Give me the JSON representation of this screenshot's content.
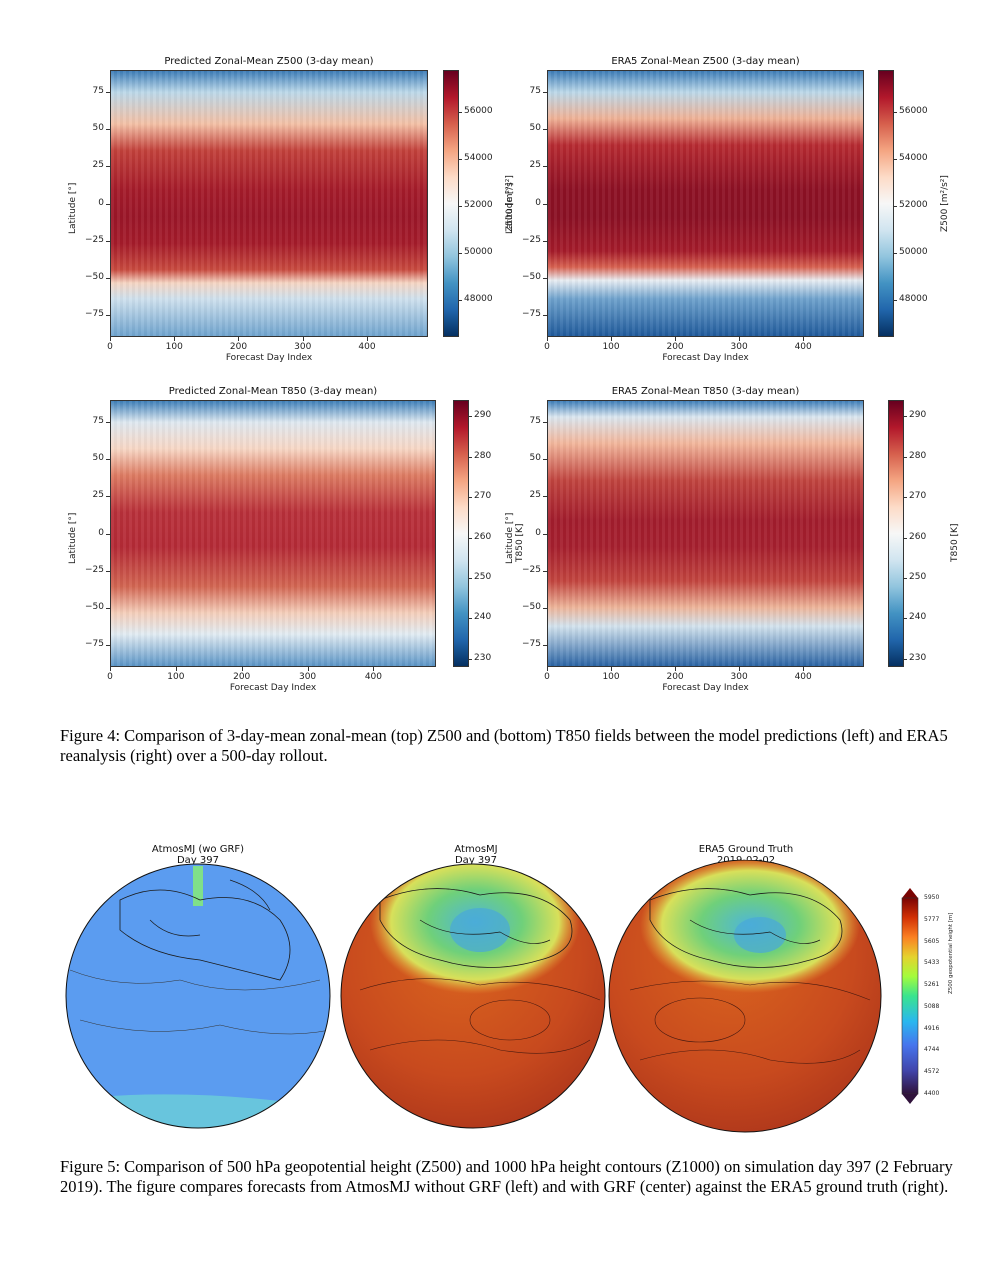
{
  "colors": {
    "rdbu": [
      "#053061",
      "#2166ac",
      "#4393c3",
      "#92c5de",
      "#d1e5f0",
      "#f7f7f7",
      "#fddbc7",
      "#f4a582",
      "#d6604d",
      "#b2182b",
      "#67001f"
    ],
    "globe_blue": "#5b9cf0",
    "globe_red": "#c94a23"
  },
  "chart_data": [
    {
      "type": "heatmap",
      "title": "Predicted Zonal-Mean Z500 (3-day mean)",
      "xlabel": "Forecast Day Index",
      "ylabel": "Latitude [°]",
      "xticks": [
        "0",
        "100",
        "200",
        "300",
        "400"
      ],
      "yticks": [
        "75",
        "50",
        "25",
        "0",
        "−25",
        "−50",
        "−75"
      ],
      "xlim": [
        0,
        495
      ],
      "ylim": [
        -90,
        90
      ],
      "colorbar_label": "Z500 [m²/s²]",
      "colorbar_ticks": [
        "56000",
        "54000",
        "52000",
        "50000",
        "48000"
      ],
      "colorbar_range": [
        46400,
        57800
      ]
    },
    {
      "type": "heatmap",
      "title": "ERA5 Zonal-Mean Z500 (3-day mean)",
      "xlabel": "Forecast Day Index",
      "ylabel": "Latitude [°]",
      "xticks": [
        "0",
        "100",
        "200",
        "300",
        "400"
      ],
      "yticks": [
        "75",
        "50",
        "25",
        "0",
        "−25",
        "−50",
        "−75"
      ],
      "xlim": [
        0,
        495
      ],
      "ylim": [
        -90,
        90
      ],
      "colorbar_label": "Z500 [m²/s²]",
      "colorbar_ticks": [
        "56000",
        "54000",
        "52000",
        "50000",
        "48000"
      ],
      "colorbar_range": [
        46400,
        57800
      ]
    },
    {
      "type": "heatmap",
      "title": "Predicted Zonal-Mean T850 (3-day mean)",
      "xlabel": "Forecast Day Index",
      "ylabel": "Latitude [°]",
      "xticks": [
        "0",
        "100",
        "200",
        "300",
        "400"
      ],
      "yticks": [
        "75",
        "50",
        "25",
        "0",
        "−25",
        "−50",
        "−75"
      ],
      "xlim": [
        0,
        495
      ],
      "ylim": [
        -90,
        90
      ],
      "colorbar_label": "T850 [K]",
      "colorbar_ticks": [
        "290",
        "280",
        "270",
        "260",
        "250",
        "240",
        "230"
      ],
      "colorbar_range": [
        228,
        294
      ]
    },
    {
      "type": "heatmap",
      "title": "ERA5 Zonal-Mean T850 (3-day mean)",
      "xlabel": "Forecast Day Index",
      "ylabel": "Latitude [°]",
      "xticks": [
        "0",
        "100",
        "200",
        "300",
        "400"
      ],
      "yticks": [
        "75",
        "50",
        "25",
        "0",
        "−25",
        "−50",
        "−75"
      ],
      "xlim": [
        0,
        495
      ],
      "ylim": [
        -90,
        90
      ],
      "colorbar_label": "T850 [K]",
      "colorbar_ticks": [
        "290",
        "280",
        "270",
        "260",
        "250",
        "240",
        "230"
      ],
      "colorbar_range": [
        228,
        294
      ]
    }
  ],
  "figure4_caption": "Figure 4: Comparison of 3-day-mean zonal-mean (top) Z500 and (bottom) T850 fields between the model predictions (left) and ERA5 reanalysis (right) over a 500-day rollout.",
  "globes": [
    {
      "title": "AtmosMJ (wo GRF)\nDay 397"
    },
    {
      "title": "AtmosMJ\nDay 397"
    },
    {
      "title": "ERA5 Ground Truth\n2019-02-02"
    }
  ],
  "globe_colorbar": {
    "label": "Z500 geopotential height [m]",
    "ticks": [
      "5950",
      "5777",
      "5605",
      "5433",
      "5261",
      "5088",
      "4916",
      "4744",
      "4572",
      "4400"
    ]
  },
  "figure5_caption": "Figure 5:  Comparison of 500 hPa geopotential height (Z500) and 1000 hPa height contours (Z1000) on simulation day 397 (2 February 2019). The figure compares forecasts from AtmosMJ without GRF (left) and with GRF (center) against the ERA5 ground truth (right)."
}
